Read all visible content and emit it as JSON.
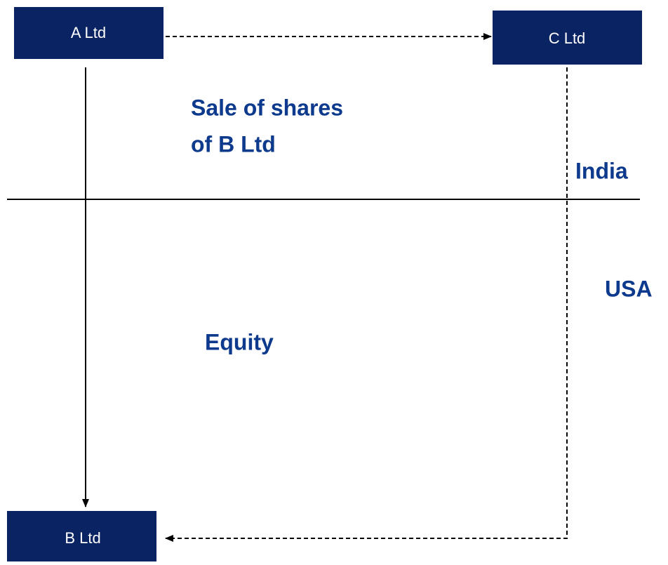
{
  "nodes": [
    {
      "label": "A Ltd"
    },
    {
      "label": "C Ltd"
    },
    {
      "label": "B Ltd"
    }
  ],
  "labels": {
    "sale_line1": "Sale of  shares",
    "sale_line2": "of  B Ltd",
    "india": "India",
    "usa": "USA",
    "equity": "Equity"
  }
}
